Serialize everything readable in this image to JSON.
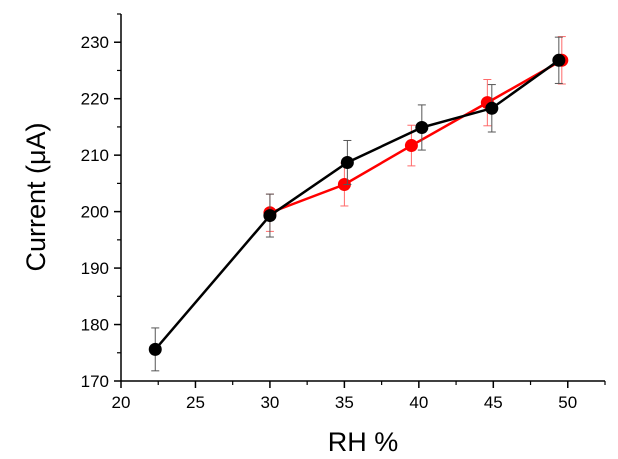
{
  "chart_data": {
    "type": "line",
    "title": "",
    "xlabel": "RH %",
    "ylabel": "Current (μA)",
    "xlim": [
      20,
      52.5
    ],
    "ylim": [
      170,
      235
    ],
    "xticks": [
      "20",
      "25",
      "30",
      "35",
      "40",
      "45",
      "50"
    ],
    "yticks": [
      "170",
      "180",
      "190",
      "200",
      "210",
      "220",
      "230"
    ],
    "grid": false,
    "legend": "none",
    "series": [
      {
        "color": "#ff0000",
        "x": [
          30,
          35,
          39.5,
          44.6,
          49.6
        ],
        "y": [
          199.8,
          204.8,
          211.7,
          219.3,
          226.8
        ],
        "err": [
          3.3,
          3.8,
          3.6,
          4.1,
          4.2
        ]
      },
      {
        "color": "#000000",
        "x": [
          22.3,
          30,
          35.2,
          40.2,
          44.9,
          49.4
        ],
        "y": [
          175.6,
          199.3,
          208.7,
          214.9,
          218.3,
          226.8
        ],
        "err": [
          3.8,
          3.8,
          3.9,
          4.0,
          4.2,
          4.1
        ]
      }
    ]
  }
}
